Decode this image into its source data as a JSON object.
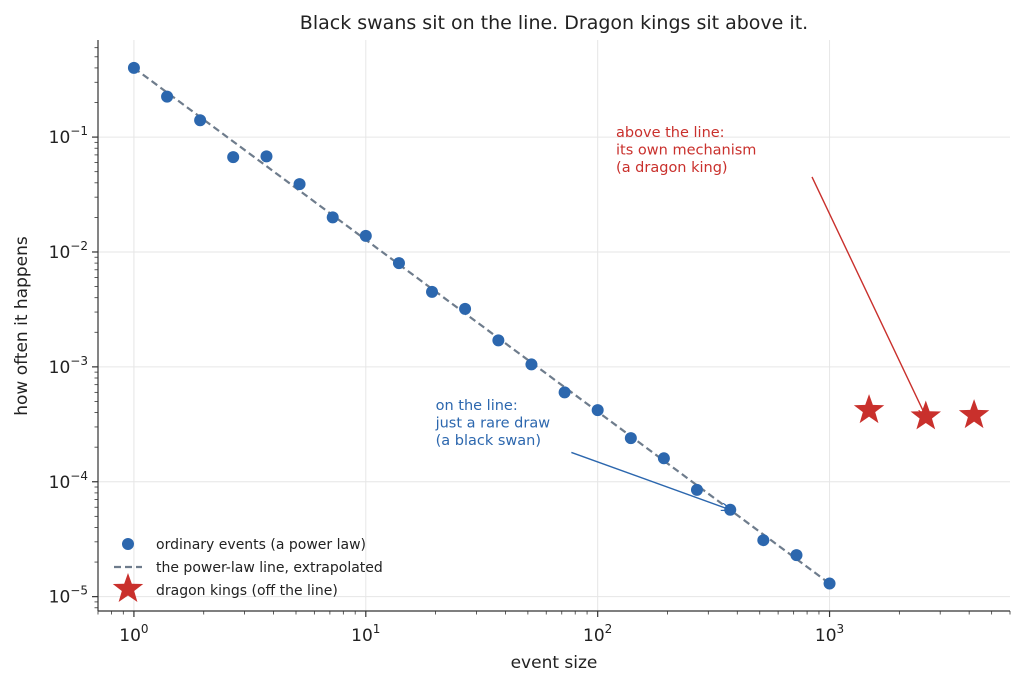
{
  "chart_data": {
    "type": "scatter",
    "title": "Black swans sit on the line. Dragon kings sit above it.",
    "xlabel": "event size",
    "ylabel": "how often it happens",
    "xscale": "log",
    "yscale": "log",
    "xlim": [
      0.7,
      6000
    ],
    "ylim": [
      7.5e-06,
      0.7
    ],
    "grid": true,
    "legend_position": "bottom-left",
    "x_ticks": [
      {
        "base": "10",
        "exp": "0",
        "value": 1
      },
      {
        "base": "10",
        "exp": "1",
        "value": 10
      },
      {
        "base": "10",
        "exp": "2",
        "value": 100
      },
      {
        "base": "10",
        "exp": "3",
        "value": 1000
      }
    ],
    "y_ticks": [
      {
        "base": "10",
        "exp": "−1",
        "value": 0.1
      },
      {
        "base": "10",
        "exp": "−2",
        "value": 0.01
      },
      {
        "base": "10",
        "exp": "−3",
        "value": 0.001
      },
      {
        "base": "10",
        "exp": "−4",
        "value": 0.0001
      },
      {
        "base": "10",
        "exp": "−5",
        "value": 1e-05
      }
    ],
    "series": [
      {
        "name": "ordinary events (a power law)",
        "kind": "scatter",
        "color": "#2c67ae",
        "x": [
          1.0,
          1.39,
          1.93,
          2.68,
          3.73,
          5.18,
          7.2,
          10.0,
          13.9,
          19.3,
          26.8,
          37.3,
          51.8,
          72.0,
          100,
          139,
          193,
          268,
          373,
          518,
          720,
          1000
        ],
        "y": [
          0.4,
          0.225,
          0.14,
          0.067,
          0.068,
          0.039,
          0.02,
          0.0138,
          0.008,
          0.0045,
          0.0032,
          0.0017,
          0.00105,
          0.0006,
          0.00042,
          0.00024,
          0.00016,
          8.5e-05,
          5.7e-05,
          3.1e-05,
          2.3e-05,
          1.3e-05
        ]
      },
      {
        "name": "the power-law line, extrapolated",
        "kind": "line",
        "color": "#6e7c8c",
        "x": [
          1,
          1000
        ],
        "y": [
          0.4,
          1.3e-05
        ]
      },
      {
        "name": "dragon kings (off the line)",
        "kind": "star",
        "color": "#c9302c",
        "x": [
          1480,
          2600,
          4200
        ],
        "y": [
          0.00042,
          0.00037,
          0.00038
        ]
      }
    ],
    "annotations": [
      {
        "name": "dragon-king-annotation",
        "lines": [
          "above the line:",
          "its own mechanism",
          "(a dragon king)"
        ],
        "color": "#c9302c",
        "text_at": [
          120,
          0.1
        ],
        "arrow_from": [
          840,
          0.045
        ],
        "arrow_to": [
          2600,
          0.00037
        ]
      },
      {
        "name": "black-swan-annotation",
        "lines": [
          "on the line:",
          "just a rare draw",
          "(a black swan)"
        ],
        "color": "#2c67ae",
        "text_at": [
          20,
          0.00042
        ],
        "arrow_from": [
          77,
          0.00018
        ],
        "arrow_to": [
          373,
          5.7e-05
        ]
      }
    ]
  }
}
